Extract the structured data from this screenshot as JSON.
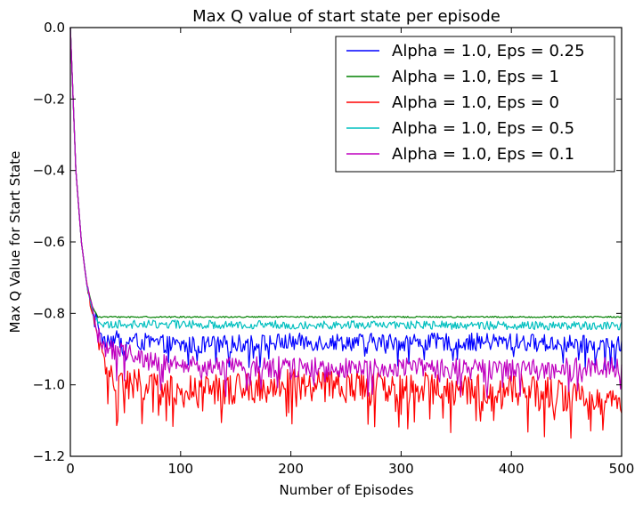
{
  "chart_data": {
    "type": "line",
    "title": "Max Q value of start state per episode",
    "xlabel": "Number of Episodes",
    "ylabel": "Max Q Value for Start State",
    "xlim": [
      0,
      500
    ],
    "ylim": [
      -1.2,
      0.0
    ],
    "x_ticks": [
      0,
      100,
      200,
      300,
      400,
      500
    ],
    "x_tick_labels": [
      "0",
      "100",
      "200",
      "300",
      "400",
      "500"
    ],
    "y_ticks": [
      0.0,
      -0.2,
      -0.4,
      -0.6,
      -0.8,
      -1.0,
      -1.2
    ],
    "y_tick_labels": [
      "0.0",
      "−0.2",
      "−0.4",
      "−0.6",
      "−0.8",
      "−1.0",
      "−1.2"
    ],
    "grid": false,
    "legend_position": "top-right",
    "episodes": 500,
    "series": [
      {
        "name": "Alpha = 1.0, Eps = 0.25",
        "color": "#0000ff",
        "start": 0.0,
        "converge_at": 30,
        "converged_mean": -0.88,
        "noise": 0.025,
        "milestones": [
          [
            0,
            0.0
          ],
          [
            5,
            -0.4
          ],
          [
            10,
            -0.6
          ],
          [
            15,
            -0.72
          ],
          [
            20,
            -0.79
          ],
          [
            30,
            -0.87
          ],
          [
            100,
            -0.89
          ],
          [
            200,
            -0.88
          ],
          [
            300,
            -0.88
          ],
          [
            400,
            -0.88
          ],
          [
            500,
            -0.89
          ]
        ]
      },
      {
        "name": "Alpha = 1.0, Eps = 1",
        "color": "#008000",
        "start": 0.0,
        "converge_at": 25,
        "converged_mean": -0.81,
        "noise": 0.002,
        "milestones": [
          [
            0,
            0.0
          ],
          [
            5,
            -0.4
          ],
          [
            10,
            -0.6
          ],
          [
            15,
            -0.72
          ],
          [
            20,
            -0.78
          ],
          [
            25,
            -0.81
          ],
          [
            500,
            -0.81
          ]
        ]
      },
      {
        "name": "Alpha = 1.0, Eps = 0",
        "color": "#ff0000",
        "start": 0.0,
        "converge_at": 40,
        "converged_mean": -1.01,
        "noise": 0.045,
        "milestones": [
          [
            0,
            0.0
          ],
          [
            5,
            -0.4
          ],
          [
            10,
            -0.6
          ],
          [
            15,
            -0.72
          ],
          [
            20,
            -0.8
          ],
          [
            30,
            -0.93
          ],
          [
            40,
            -0.99
          ],
          [
            100,
            -1.02
          ],
          [
            200,
            -1.0
          ],
          [
            300,
            -1.01
          ],
          [
            400,
            -1.01
          ],
          [
            500,
            -1.05
          ]
        ]
      },
      {
        "name": "Alpha = 1.0, Eps = 0.5",
        "color": "#00bfbf",
        "start": 0.0,
        "converge_at": 25,
        "converged_mean": -0.835,
        "noise": 0.012,
        "milestones": [
          [
            0,
            0.0
          ],
          [
            5,
            -0.4
          ],
          [
            10,
            -0.6
          ],
          [
            15,
            -0.72
          ],
          [
            20,
            -0.79
          ],
          [
            25,
            -0.83
          ],
          [
            500,
            -0.835
          ]
        ]
      },
      {
        "name": "Alpha = 1.0, Eps = 0.1",
        "color": "#bf00bf",
        "start": 0.0,
        "converge_at": 35,
        "converged_mean": -0.95,
        "noise": 0.03,
        "milestones": [
          [
            0,
            0.0
          ],
          [
            5,
            -0.4
          ],
          [
            10,
            -0.6
          ],
          [
            15,
            -0.72
          ],
          [
            20,
            -0.79
          ],
          [
            30,
            -0.9
          ],
          [
            100,
            -0.95
          ],
          [
            200,
            -0.95
          ],
          [
            300,
            -0.95
          ],
          [
            400,
            -0.96
          ],
          [
            500,
            -0.95
          ]
        ]
      }
    ]
  }
}
